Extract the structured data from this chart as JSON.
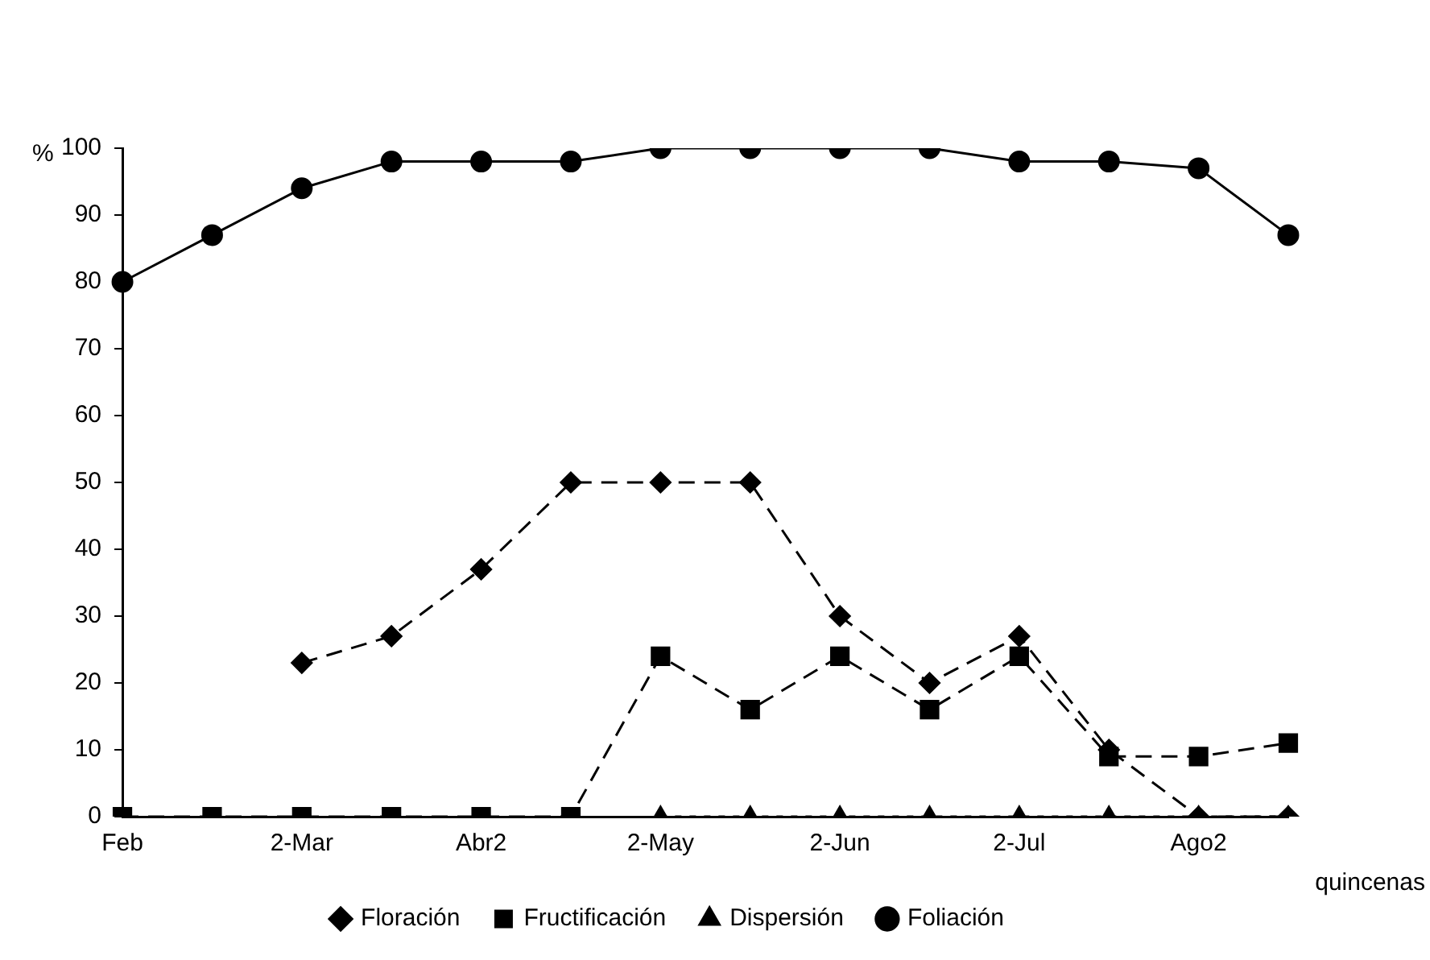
{
  "chart_data": {
    "type": "line",
    "ylabel": "%",
    "xlabel": "quincenas",
    "categories": [
      "Feb",
      null,
      "2-Mar",
      null,
      "Abr2",
      null,
      "2-May",
      null,
      "2-Jun",
      null,
      "2-Jul",
      null,
      "Ago2",
      null
    ],
    "series": [
      {
        "name": "Floración",
        "color": "#000000",
        "marker": "diamond",
        "line_style": "dashed",
        "values": [
          null,
          null,
          23,
          27,
          37,
          50,
          50,
          50,
          30,
          20,
          27,
          10,
          0,
          0
        ]
      },
      {
        "name": "Fructificación",
        "color": "#000000",
        "marker": "square",
        "line_style": "dashed",
        "values": [
          0,
          0,
          0,
          0,
          0,
          0,
          24,
          16,
          24,
          16,
          24,
          9,
          9,
          11
        ]
      },
      {
        "name": "Dispersión",
        "color": "#000000",
        "marker": "triangle",
        "line_style": "dotted",
        "values": [
          null,
          null,
          null,
          null,
          null,
          null,
          0,
          0,
          0,
          0,
          0,
          0,
          0,
          0
        ]
      },
      {
        "name": "Foliación",
        "color": "#000000",
        "marker": "circle",
        "line_style": "solid",
        "values": [
          80,
          87,
          94,
          98,
          98,
          98,
          100,
          100,
          100,
          100,
          98,
          98,
          97,
          87
        ]
      }
    ],
    "ylim": [
      0,
      100
    ],
    "yticks": [
      0,
      10,
      20,
      30,
      40,
      50,
      60,
      70,
      80,
      90,
      100
    ],
    "grid": false,
    "legend": "bottom"
  }
}
